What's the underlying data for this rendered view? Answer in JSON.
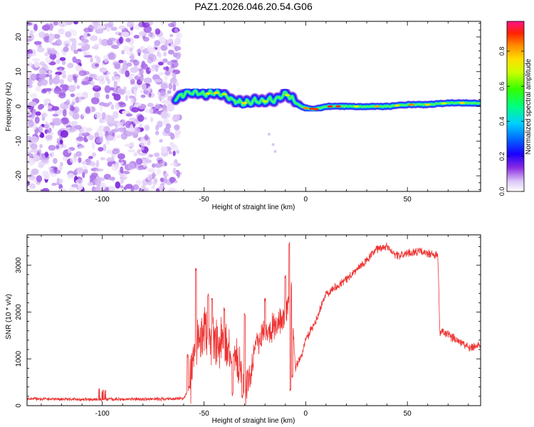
{
  "title": "PAZ1.2026.046.20.54.G06",
  "chart_data": [
    {
      "type": "heatmap",
      "xlabel": "Height of straight line (km)",
      "ylabel": "Frequency (Hz)",
      "xlim": [
        -137,
        86
      ],
      "ylim": [
        -24.5,
        24.5
      ],
      "xticks": [
        -100,
        -50,
        0,
        50
      ],
      "yticks": [
        -20,
        -10,
        0,
        10,
        20
      ],
      "noise_region_x": [
        -137,
        -62
      ],
      "signal_ridge": {
        "x": [
          -64,
          -60,
          -55,
          -50,
          -45,
          -40,
          -35,
          -30,
          -25,
          -20,
          -15,
          -10,
          -8,
          -5,
          -2,
          0,
          5,
          10,
          15,
          20,
          30,
          40,
          50,
          60,
          70,
          80,
          86
        ],
        "y": [
          2.5,
          3.5,
          4.0,
          3.5,
          4.0,
          3.5,
          1.5,
          1.0,
          1.5,
          1.5,
          2.0,
          3.5,
          3.0,
          1.0,
          0.0,
          -0.5,
          -0.8,
          0.0,
          0.0,
          0.0,
          0.0,
          0.0,
          0.5,
          0.5,
          1.0,
          1.0,
          1.0
        ]
      },
      "colorbar": {
        "label": "Normalized spectral amplitude",
        "range": [
          0.0,
          0.97
        ],
        "ticks": [
          "0.0",
          "0.2",
          "0.4",
          "0.6",
          "0.8"
        ]
      }
    },
    {
      "type": "line",
      "xlabel": "Height of straight line (km)",
      "ylabel": "SNR (10 * v/v)",
      "xlim": [
        -137,
        86
      ],
      "ylim": [
        0,
        3650
      ],
      "xticks": [
        -100,
        -50,
        0,
        50
      ],
      "yticks": [
        0,
        1000,
        2000,
        3000
      ],
      "color": "#ee3333",
      "trend": {
        "x": [
          -137,
          -100,
          -60,
          -57,
          -55,
          -52,
          -48,
          -45,
          -40,
          -35,
          -30,
          -28,
          -25,
          -20,
          -15,
          -10,
          -8,
          -7,
          -6,
          -5,
          -2,
          0,
          5,
          10,
          20,
          30,
          35,
          40,
          45,
          50,
          55,
          60,
          65,
          66,
          67,
          70,
          75,
          80,
          86
        ],
        "y": [
          150,
          130,
          150,
          400,
          1100,
          1500,
          1700,
          1200,
          1300,
          1000,
          600,
          500,
          1300,
          1600,
          1700,
          1900,
          2300,
          2600,
          1500,
          800,
          1100,
          1400,
          1800,
          2400,
          2700,
          3100,
          3350,
          3400,
          3200,
          3250,
          3300,
          3250,
          3200,
          1500,
          1600,
          1500,
          1400,
          1250,
          1300
        ]
      }
    }
  ]
}
